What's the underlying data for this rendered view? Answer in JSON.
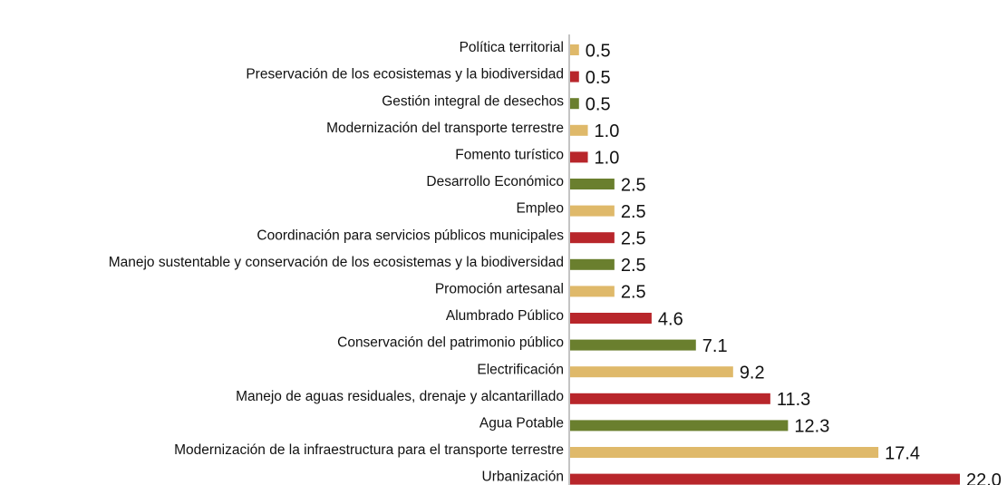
{
  "chart_data": {
    "type": "barh",
    "categories": [
      "Política territorial",
      "Preservación de los ecosistemas y la biodiversidad",
      "Gestión integral de desechos",
      "Modernización del transporte terrestre",
      "Fomento turístico",
      "Desarrollo Económico",
      "Empleo",
      "Coordinación para servicios públicos municipales",
      "Manejo sustentable y conservación de los ecosistemas y la biodiversidad",
      "Promoción artesanal",
      "Alumbrado Público",
      "Conservación del patrimonio público",
      "Electrificación",
      "Manejo de aguas residuales, drenaje y alcantarillado",
      "Agua Potable",
      "Modernización de la infraestructura para el transporte terrestre",
      "Urbanización"
    ],
    "values": [
      0.5,
      0.5,
      0.5,
      1.0,
      1.0,
      2.5,
      2.5,
      2.5,
      2.5,
      2.5,
      4.6,
      7.1,
      9.2,
      11.3,
      12.3,
      17.4,
      22.0
    ],
    "value_labels": [
      "0.5",
      "0.5",
      "0.5",
      "1.0",
      "1.0",
      "2.5",
      "2.5",
      "2.5",
      "2.5",
      "2.5",
      "4.6",
      "7.1",
      "9.2",
      "11.3",
      "12.3",
      "17.4",
      "22.0"
    ],
    "colors": [
      "#dfb96a",
      "#b8262b",
      "#6a7f2e",
      "#dfb96a",
      "#b8262b",
      "#6a7f2e",
      "#dfb96a",
      "#b8262b",
      "#6a7f2e",
      "#dfb96a",
      "#b8262b",
      "#6a7f2e",
      "#dfb96a",
      "#b8262b",
      "#6a7f2e",
      "#dfb96a",
      "#b8262b"
    ]
  }
}
